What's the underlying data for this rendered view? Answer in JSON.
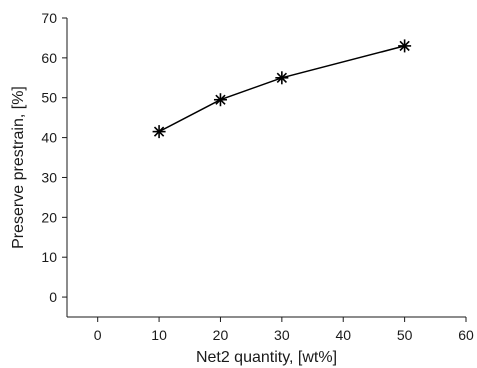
{
  "chart_data": {
    "type": "line",
    "title": "",
    "xlabel": "Net2 quantity, [wt%]",
    "ylabel": "Preserve prestrain, [%]",
    "xlim": [
      -5,
      60
    ],
    "ylim": [
      -5,
      70
    ],
    "xticks": [
      0,
      10,
      20,
      30,
      40,
      50,
      60
    ],
    "yticks": [
      0,
      10,
      20,
      30,
      40,
      50,
      60,
      70
    ],
    "grid": false,
    "series": [
      {
        "x": [
          10,
          20,
          30,
          50
        ],
        "y": [
          41.5,
          49.5,
          55,
          63
        ],
        "marker": "asterisk",
        "line_color": "#000000"
      }
    ]
  }
}
